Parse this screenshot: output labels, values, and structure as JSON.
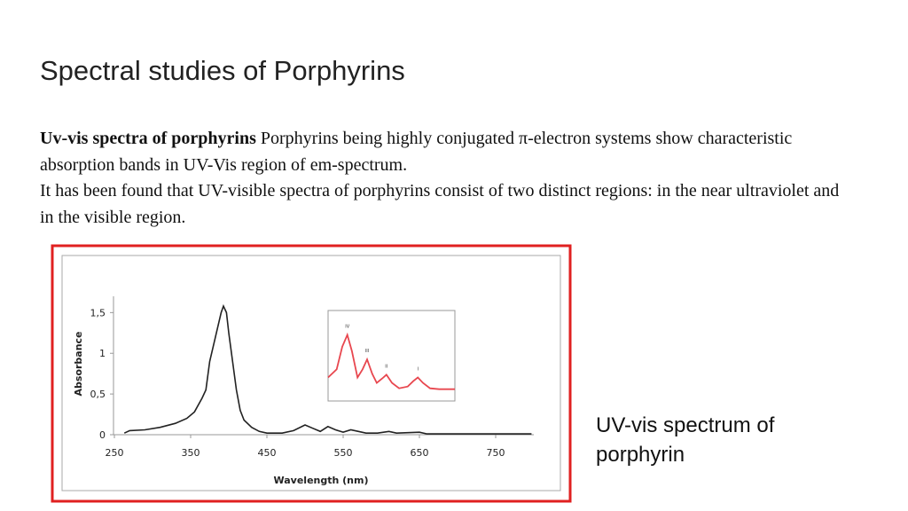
{
  "slide": {
    "title": "Spectral studies of Porphyrins",
    "paragraphs": [
      {
        "lead": "Uv-vis spectra of porphyrins",
        "text": " Porphyrins being highly conjugated π-electron systems show characteristic absorption bands in UV-Vis region of em-spectrum."
      },
      {
        "text": "It has been found that  UV-visible spectra of porphyrins consist of two distinct  regions: in the near ultraviolet and in the visible region."
      }
    ],
    "caption": "UV-vis spectrum of porphyrin"
  },
  "chart_data": [
    {
      "type": "line",
      "color": "#222222",
      "x_label": "Wavelength (nm)",
      "y_label": "Absorbance",
      "x": [
        263,
        270,
        290,
        310,
        330,
        345,
        355,
        365,
        370,
        375,
        380,
        385,
        390,
        393,
        397,
        400,
        405,
        410,
        415,
        420,
        430,
        440,
        450,
        470,
        485,
        500,
        510,
        520,
        530,
        540,
        550,
        560,
        570,
        580,
        595,
        610,
        620,
        650,
        660,
        700,
        750,
        797
      ],
      "values": [
        0.02,
        0.05,
        0.06,
        0.09,
        0.14,
        0.2,
        0.28,
        0.45,
        0.55,
        0.9,
        1.1,
        1.3,
        1.5,
        1.58,
        1.5,
        1.25,
        0.9,
        0.55,
        0.3,
        0.18,
        0.09,
        0.04,
        0.02,
        0.02,
        0.05,
        0.12,
        0.08,
        0.04,
        0.1,
        0.06,
        0.03,
        0.06,
        0.04,
        0.02,
        0.02,
        0.04,
        0.02,
        0.03,
        0.01,
        0.01,
        0.01,
        0.01
      ],
      "xlim": [
        250,
        800
      ],
      "ylim": [
        0,
        1.7
      ],
      "xticks": [
        250,
        350,
        450,
        550,
        650,
        750
      ],
      "yticks": [
        0,
        {
          "value": 0.5,
          "label": "0,5"
        },
        1,
        {
          "value": 1.5,
          "label": "1,5"
        }
      ]
    },
    {
      "type": "line",
      "color": "#e8474f",
      "x": [
        470,
        487,
        498,
        508,
        517,
        528,
        538,
        547,
        557,
        566,
        577,
        585,
        596,
        610,
        627,
        638,
        647,
        657,
        671,
        689,
        720
      ],
      "values": [
        0.26,
        0.35,
        0.6,
        0.73,
        0.55,
        0.26,
        0.35,
        0.46,
        0.3,
        0.2,
        0.25,
        0.29,
        0.2,
        0.14,
        0.16,
        0.22,
        0.26,
        0.2,
        0.14,
        0.13,
        0.13
      ],
      "xlim": [
        470,
        720
      ],
      "ylim": [
        0,
        1
      ],
      "annotations": [
        {
          "text": "IV",
          "x": 508
        },
        {
          "text": "III",
          "x": 547
        },
        {
          "text": "II",
          "x": 585
        },
        {
          "text": "I",
          "x": 647
        }
      ]
    }
  ]
}
